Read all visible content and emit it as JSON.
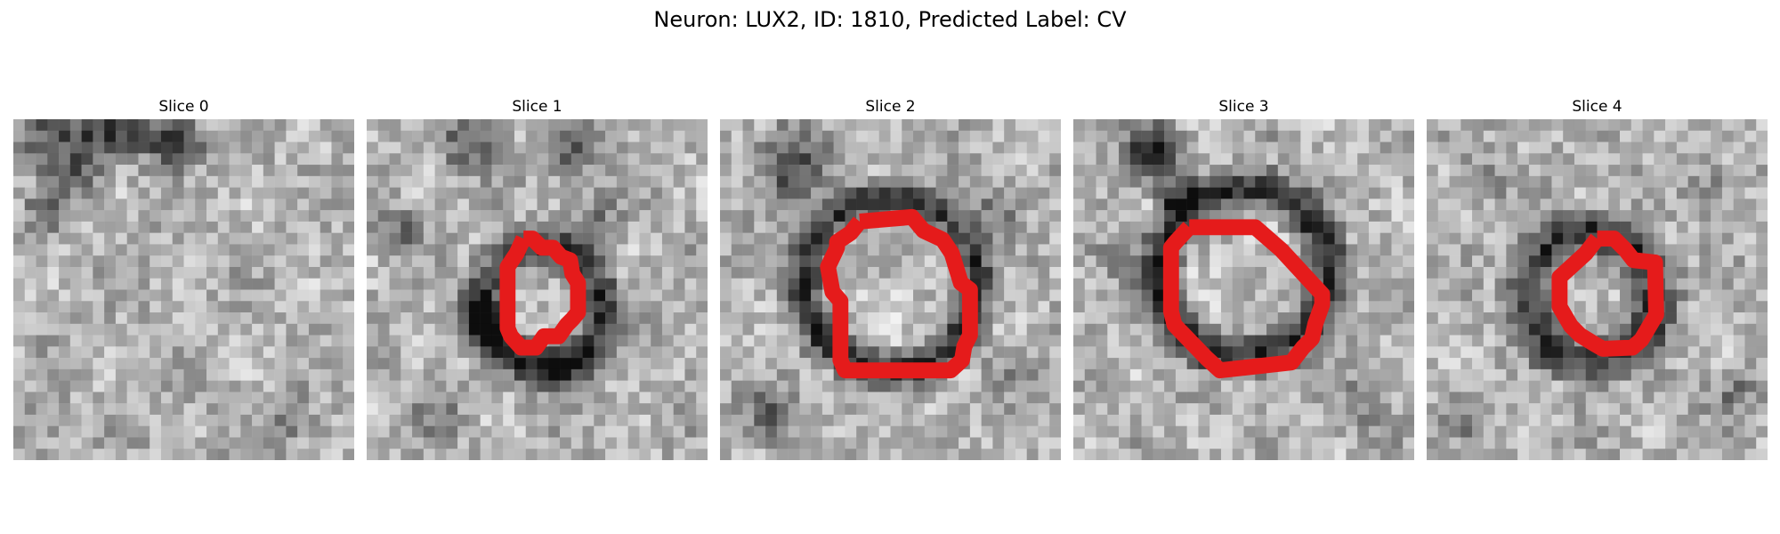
{
  "figure": {
    "title": "Neuron: LUX2, ID: 1810, Predicted Label: CV"
  },
  "colors": {
    "contour": "#e51b1b",
    "background": "#ffffff",
    "colormap": "grayscale"
  },
  "panels": [
    {
      "title": "Slice 0"
    },
    {
      "title": "Slice 1"
    },
    {
      "title": "Slice 2"
    },
    {
      "title": "Slice 3"
    },
    {
      "title": "Slice 4"
    }
  ]
}
